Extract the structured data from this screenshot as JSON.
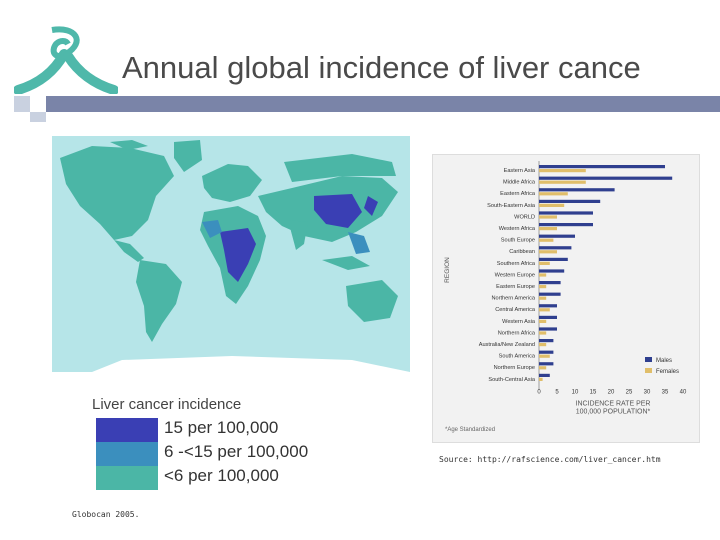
{
  "slide": {
    "title": "Annual global incidence of liver cance",
    "source": "Source: http://rafscience.com/liver_cancer.htm",
    "citation": "Globocan 2005."
  },
  "legend": {
    "title": "Liver cancer incidence",
    "items": [
      {
        "label": "15 per 100,000",
        "color": "#3a3fb4"
      },
      {
        "label": "6 -<15 per 100,000",
        "color": "#3b8fbe"
      },
      {
        "label": "<6 per 100,000",
        "color": "#4bb6a6"
      }
    ]
  },
  "colors": {
    "ocean": "#b6e5e8",
    "accent_bar": "#7a84a8",
    "logo": "#4fb8aa",
    "males": "#2f3f8f",
    "females": "#e0be6a"
  },
  "chart_data": {
    "type": "bar",
    "orientation": "horizontal",
    "ylabel": "REGION",
    "xlabel": "INCIDENCE RATE PER 100,000 POPULATION*",
    "note": "*Age Standardized",
    "xlim": [
      0,
      40
    ],
    "xticks": [
      0,
      5,
      10,
      15,
      20,
      25,
      30,
      35,
      40
    ],
    "legend_position": "bottom-right",
    "categories": [
      "Eastern Asia",
      "Middle Africa",
      "Eastern Africa",
      "South-Eastern Asia",
      "WORLD",
      "Western Africa",
      "South Europe",
      "Caribbean",
      "Southern Africa",
      "Western Europe",
      "Eastern Europe",
      "Northern America",
      "Central America",
      "Western Asia",
      "Northern Africa",
      "Australia/New Zealand",
      "South America",
      "Northern Europe",
      "South-Central Asia"
    ],
    "series": [
      {
        "name": "Males",
        "values": [
          35,
          37,
          21,
          17,
          15,
          15,
          10,
          9,
          8,
          7,
          6,
          6,
          5,
          5,
          5,
          4,
          4,
          4,
          3
        ]
      },
      {
        "name": "Females",
        "values": [
          13,
          13,
          8,
          7,
          5,
          5,
          4,
          5,
          3,
          2,
          2,
          2,
          3,
          2,
          2,
          2,
          3,
          2,
          1
        ]
      }
    ]
  }
}
